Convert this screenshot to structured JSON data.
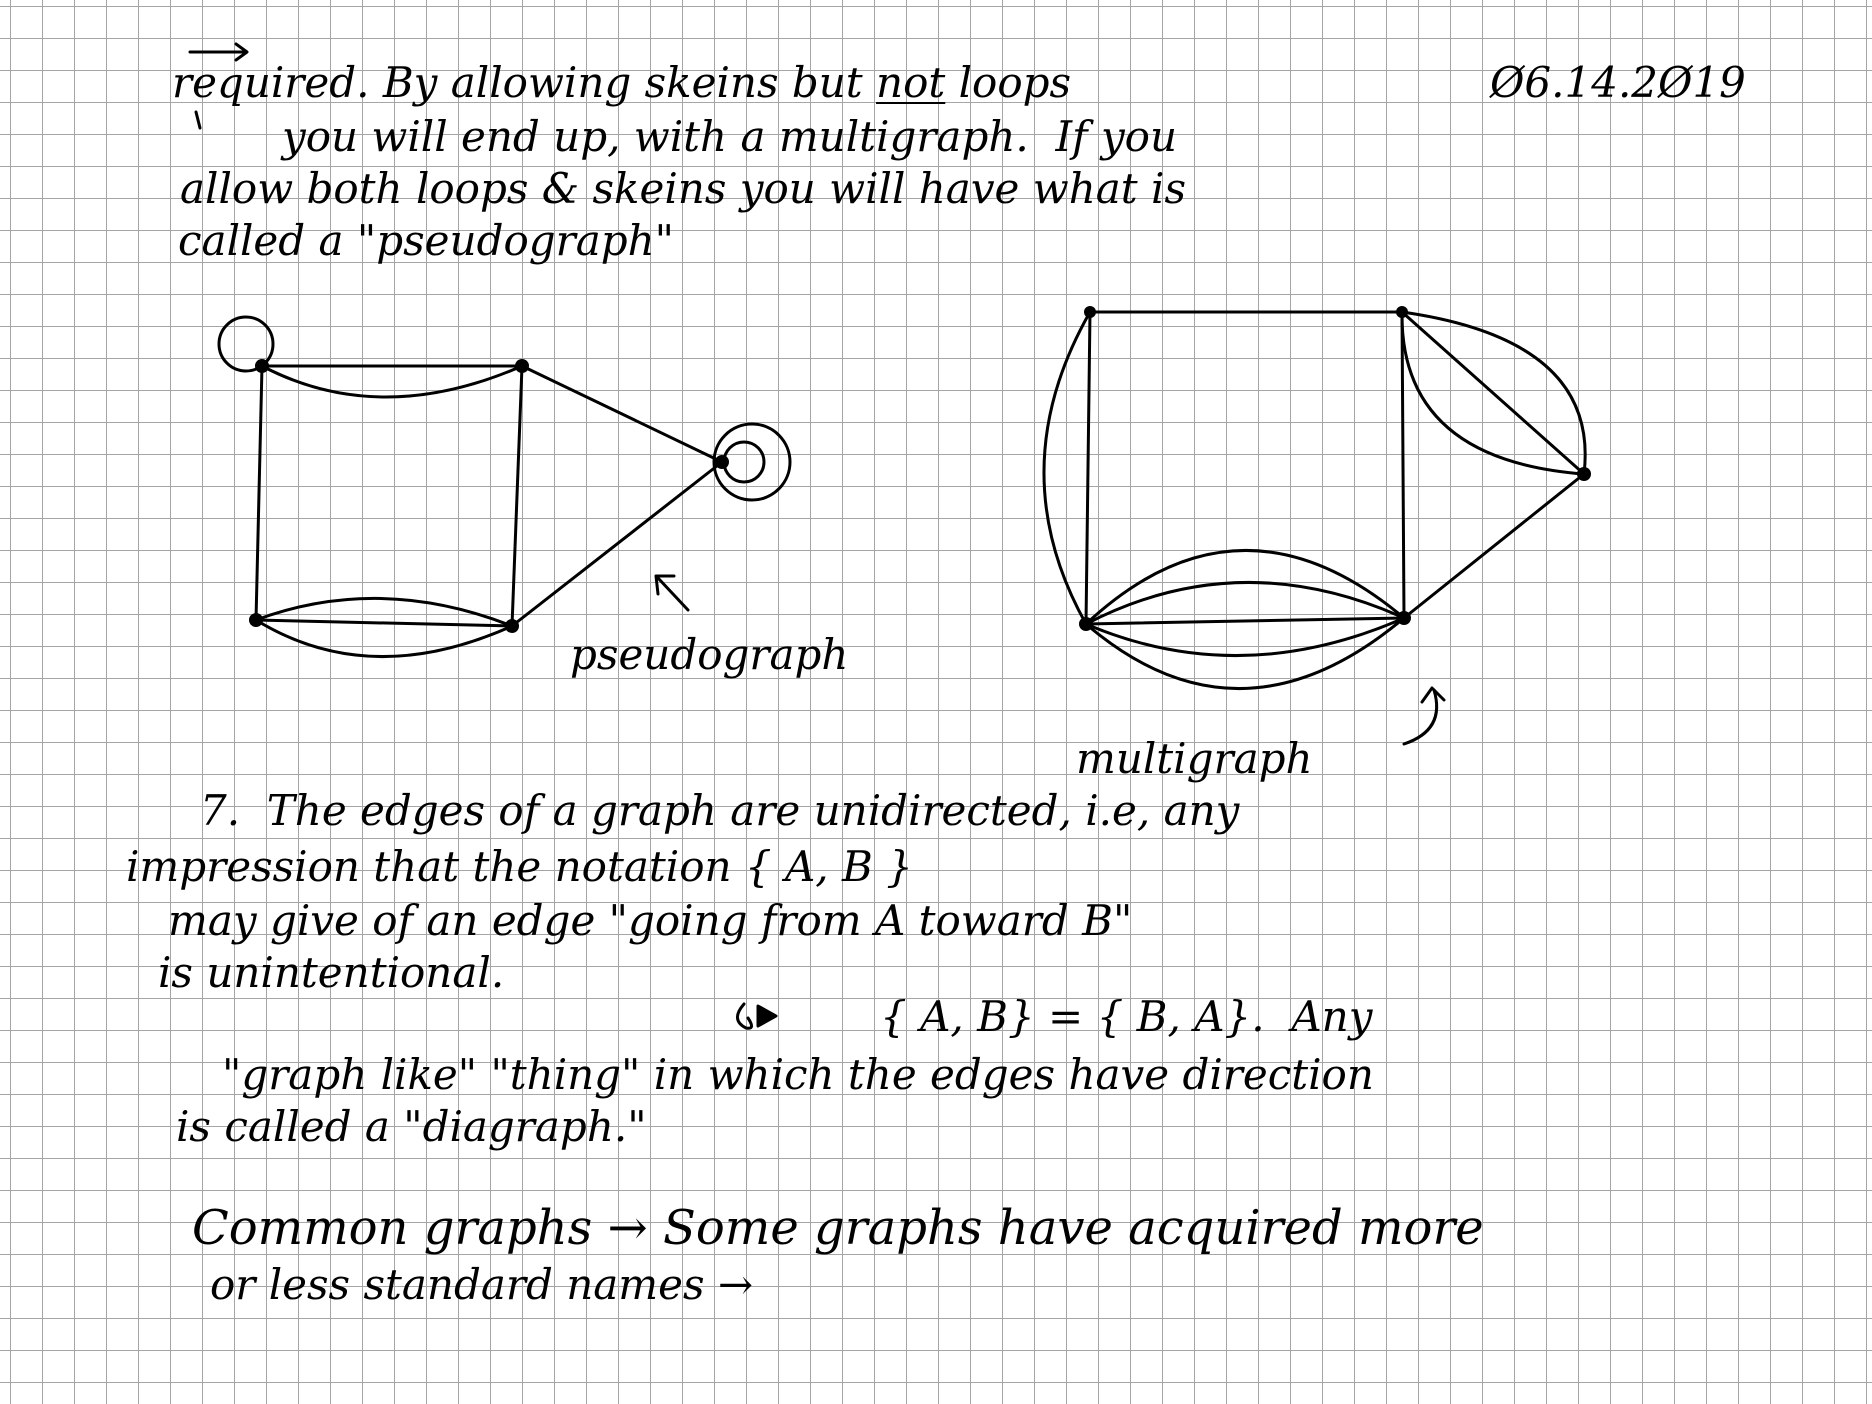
{
  "paragraph_1": {
    "line_1": "required. By allowing skeins but",
    "emphasis": "not",
    "line_1_end": "loops",
    "date": "Ø6.14.2Ø19",
    "line_2": "you will end up, with a multigraph.  If you",
    "line_3": "allow both loops & skeins you will have what is",
    "line_4": "called a \"pseudograph\""
  },
  "figures": {
    "pseudograph_label": "pseudograph",
    "multigraph_label": "multigraph"
  },
  "paragraph_2": {
    "line_1": "7.  The edges of a graph are unidirected, i.e, any",
    "line_2": "impression that the notation { A, B }",
    "line_3": "may give of an edge \"going from A toward B\"",
    "line_4": "is unintentional.",
    "equation": "{ A, B} = { B, A}.  Any",
    "line_5": "\"graph like\" \"thing\" in which the edges have direction",
    "line_6": "is called a \"diagraph.\""
  },
  "paragraph_3": {
    "line_1": "Common graphs → Some graphs have acquired more",
    "line_2": "or less standard names →"
  },
  "colors": {
    "grid": "#a6a6a6",
    "ink": "#000000",
    "paper": "#ffffff"
  }
}
